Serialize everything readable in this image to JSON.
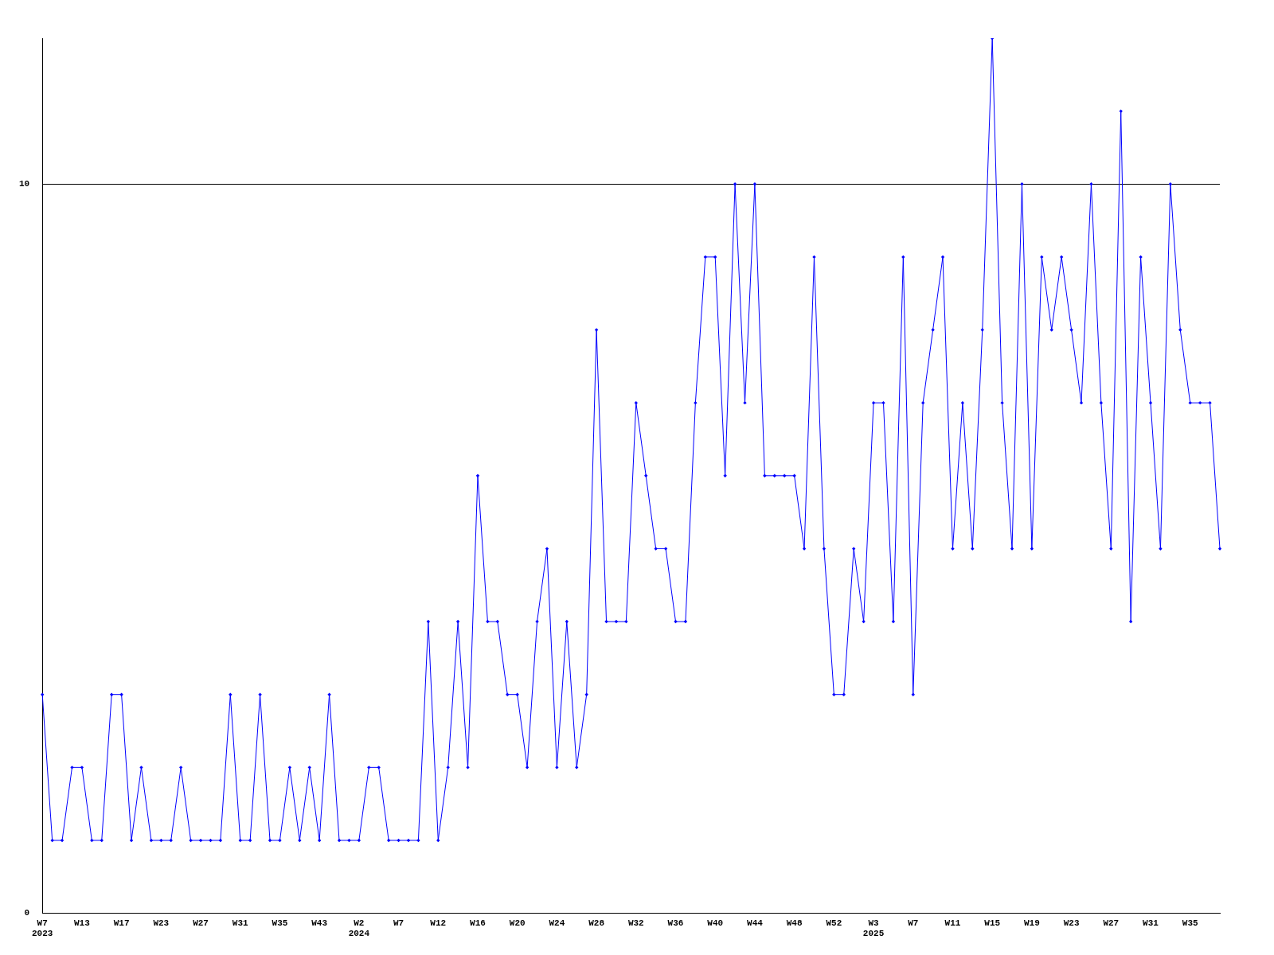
{
  "chart_data": {
    "type": "line",
    "categories": [
      "W7\n2023",
      null,
      null,
      null,
      "W13",
      null,
      null,
      null,
      "W17",
      null,
      null,
      null,
      "W23",
      null,
      null,
      null,
      "W27",
      null,
      null,
      null,
      "W31",
      null,
      null,
      null,
      "W35",
      null,
      null,
      null,
      "W43",
      null,
      null,
      null,
      "W2\n2024",
      null,
      null,
      null,
      "W7",
      null,
      null,
      null,
      "W12",
      null,
      null,
      null,
      "W16",
      null,
      null,
      null,
      "W20",
      null,
      null,
      null,
      "W24",
      null,
      null,
      null,
      "W28",
      null,
      null,
      null,
      "W32",
      null,
      null,
      null,
      "W36",
      null,
      null,
      null,
      "W40",
      null,
      null,
      null,
      "W44",
      null,
      null,
      null,
      "W48",
      null,
      null,
      null,
      "W52",
      null,
      null,
      null,
      "W3\n2025",
      null,
      null,
      null,
      "W7",
      null,
      null,
      null,
      "W11",
      null,
      null,
      null,
      "W15",
      null,
      null,
      null,
      "W19",
      null,
      null,
      null,
      "W23",
      null,
      null,
      null,
      "W27",
      null,
      null,
      null,
      "W31",
      null,
      null,
      null,
      "W35",
      null,
      null,
      null
    ],
    "series": [
      {
        "color": "#0000ff",
        "values": [
          3,
          1,
          1,
          2,
          2,
          1,
          1,
          3,
          3,
          1,
          2,
          1,
          1,
          1,
          2,
          1,
          1,
          1,
          1,
          3,
          1,
          1,
          3,
          1,
          1,
          2,
          1,
          2,
          1,
          3,
          1,
          1,
          1,
          2,
          2,
          1,
          1,
          1,
          1,
          4,
          1,
          2,
          4,
          2,
          6,
          4,
          4,
          3,
          3,
          2,
          4,
          5,
          2,
          4,
          2,
          3,
          8,
          4,
          4,
          4,
          7,
          6,
          5,
          5,
          4,
          4,
          7,
          9,
          9,
          6,
          10,
          7,
          10,
          6,
          6,
          6,
          6,
          5,
          9,
          5,
          3,
          3,
          5,
          4,
          7,
          7,
          4,
          9,
          3,
          7,
          8,
          9,
          5,
          7,
          5,
          8,
          12,
          7,
          5,
          10,
          5,
          9,
          8,
          9,
          8,
          7,
          10,
          7,
          5,
          11,
          4,
          9,
          7,
          5,
          10,
          8,
          7,
          7,
          7,
          5
        ]
      }
    ],
    "ylim": [
      0,
      12
    ],
    "yticks": [
      0,
      10
    ],
    "grid": "y",
    "legend": false,
    "marker": "diamond",
    "line_style": "solid"
  }
}
